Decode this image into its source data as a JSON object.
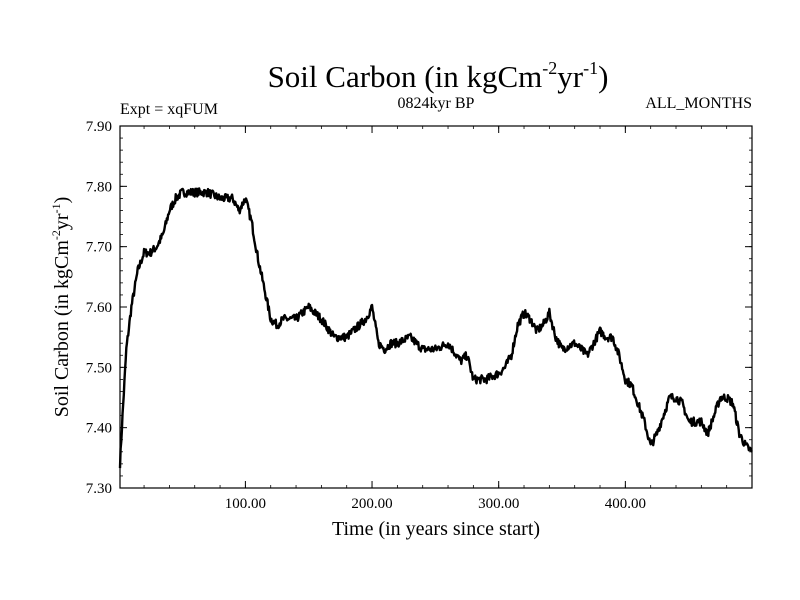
{
  "chart_data": {
    "type": "line",
    "title": "Soil Carbon (in kgCm",
    "title_sup1": "-2",
    "title_mid": "yr",
    "title_sup2": "-1",
    "title_end": ")",
    "subtitle_left": "Expt = xqFUM",
    "subtitle_center": "0824kyr BP",
    "subtitle_right": "ALL_MONTHS",
    "xlabel": "Time (in years since start)",
    "ylabel": "Soil Carbon (in kgCm",
    "ylabel_sup1": "-2",
    "ylabel_mid": "yr",
    "ylabel_sup2": "-1",
    "ylabel_end": ")",
    "xlim": [
      1,
      500
    ],
    "ylim": [
      7.3,
      7.9
    ],
    "x_ticks": [
      100,
      200,
      300,
      400
    ],
    "x_tick_labels": [
      "100.00",
      "200.00",
      "300.00",
      "400.00"
    ],
    "y_ticks": [
      7.3,
      7.4,
      7.5,
      7.6,
      7.7,
      7.8,
      7.9
    ],
    "y_tick_labels": [
      "7.30",
      "7.40",
      "7.50",
      "7.60",
      "7.70",
      "7.80",
      "7.90"
    ],
    "series": [
      {
        "name": "Soil Carbon",
        "color": "#000000",
        "x": [
          1,
          3,
          6,
          10,
          15,
          20,
          25,
          30,
          35,
          40,
          45,
          50,
          60,
          70,
          80,
          90,
          95,
          100,
          105,
          110,
          115,
          120,
          125,
          130,
          140,
          150,
          155,
          160,
          170,
          180,
          190,
          195,
          200,
          205,
          210,
          215,
          220,
          230,
          240,
          250,
          260,
          270,
          275,
          280,
          290,
          300,
          305,
          310,
          315,
          320,
          325,
          330,
          335,
          340,
          345,
          350,
          360,
          370,
          375,
          380,
          385,
          390,
          395,
          400,
          405,
          410,
          415,
          420,
          425,
          430,
          435,
          440,
          445,
          450,
          455,
          460,
          465,
          470,
          475,
          480,
          485,
          490,
          495,
          500
        ],
        "values": [
          7.34,
          7.42,
          7.53,
          7.6,
          7.66,
          7.69,
          7.69,
          7.7,
          7.72,
          7.76,
          7.78,
          7.79,
          7.79,
          7.79,
          7.78,
          7.78,
          7.76,
          7.78,
          7.74,
          7.68,
          7.63,
          7.58,
          7.57,
          7.58,
          7.58,
          7.6,
          7.59,
          7.58,
          7.55,
          7.55,
          7.57,
          7.58,
          7.6,
          7.54,
          7.53,
          7.54,
          7.54,
          7.55,
          7.53,
          7.53,
          7.54,
          7.51,
          7.52,
          7.48,
          7.48,
          7.49,
          7.5,
          7.52,
          7.57,
          7.59,
          7.58,
          7.56,
          7.57,
          7.59,
          7.55,
          7.53,
          7.54,
          7.52,
          7.54,
          7.56,
          7.55,
          7.55,
          7.52,
          7.48,
          7.47,
          7.44,
          7.41,
          7.37,
          7.39,
          7.42,
          7.45,
          7.45,
          7.44,
          7.41,
          7.41,
          7.41,
          7.39,
          7.42,
          7.45,
          7.45,
          7.44,
          7.39,
          7.37,
          7.36
        ]
      }
    ]
  }
}
